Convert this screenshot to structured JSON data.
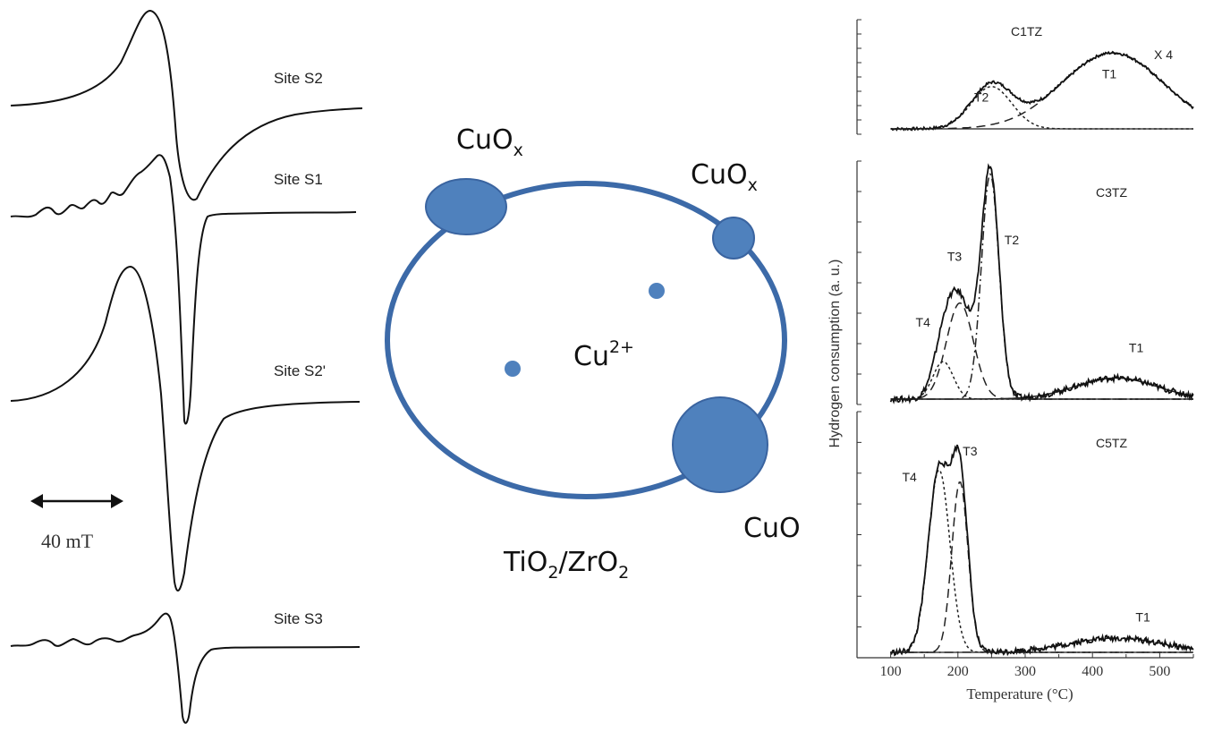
{
  "epr": {
    "sites": [
      {
        "id": "S2",
        "label": "Site S2"
      },
      {
        "id": "S1",
        "label": "Site S1"
      },
      {
        "id": "S2p",
        "label": "Site S2'"
      },
      {
        "id": "S3",
        "label": "Site S3"
      }
    ],
    "scale_bar": "40 mT"
  },
  "schematic": {
    "support": {
      "main": "TiO",
      "sub1": "2",
      "slash": "/ZrO",
      "sub2": "2"
    },
    "cuox_left": {
      "main": "CuO",
      "sub": "x"
    },
    "cuox_right": {
      "main": "CuO",
      "sub": "x"
    },
    "cu2": {
      "main": "Cu",
      "sup": "2+"
    },
    "cuo": "CuO",
    "colors": {
      "particle": "#4f81bd",
      "ring": "#3c6aa8",
      "particle_edge": "#3a64a0"
    }
  },
  "chart_data": {
    "type": "line",
    "xlabel": "Temperature (°C)",
    "ylabel": "Hydrogen consumption (a. u.)",
    "xlim": [
      50,
      550
    ],
    "xticks": [
      100,
      200,
      300,
      400,
      500
    ],
    "panels": [
      {
        "name": "C1TZ",
        "multiplier": "X 4",
        "peaks": [
          {
            "label": "T2",
            "center": 250,
            "width": 30,
            "height": 0.4
          },
          {
            "label": "T1",
            "center": 430,
            "width": 75,
            "height": 0.72
          }
        ],
        "peak_labels": [
          {
            "text": "T2",
            "x": 235,
            "y": 0.26
          },
          {
            "text": "T1",
            "x": 425,
            "y": 0.48
          }
        ]
      },
      {
        "name": "C3TZ",
        "peaks": [
          {
            "label": "T4",
            "center": 178,
            "width": 15,
            "height": 0.16
          },
          {
            "label": "T3",
            "center": 203,
            "width": 20,
            "height": 0.41
          },
          {
            "label": "T2",
            "center": 248,
            "width": 13,
            "height": 0.96
          },
          {
            "label": "T1",
            "center": 435,
            "width": 60,
            "height": 0.09
          }
        ],
        "peak_labels": [
          {
            "text": "T4",
            "x": 148,
            "y": 0.31
          },
          {
            "text": "T3",
            "x": 195,
            "y": 0.59
          },
          {
            "text": "T2",
            "x": 280,
            "y": 0.66
          },
          {
            "text": "T1",
            "x": 465,
            "y": 0.2
          }
        ]
      },
      {
        "name": "C5TZ",
        "peaks": [
          {
            "label": "T4",
            "center": 172,
            "width": 16,
            "height": 0.77
          },
          {
            "label": "T3",
            "center": 203,
            "width": 12,
            "height": 0.72
          },
          {
            "label": "T1",
            "center": 435,
            "width": 70,
            "height": 0.06
          }
        ],
        "peak_labels": [
          {
            "text": "T4",
            "x": 128,
            "y": 0.72
          },
          {
            "text": "T3",
            "x": 218,
            "y": 0.83
          },
          {
            "text": "T1",
            "x": 475,
            "y": 0.13
          }
        ]
      }
    ]
  }
}
